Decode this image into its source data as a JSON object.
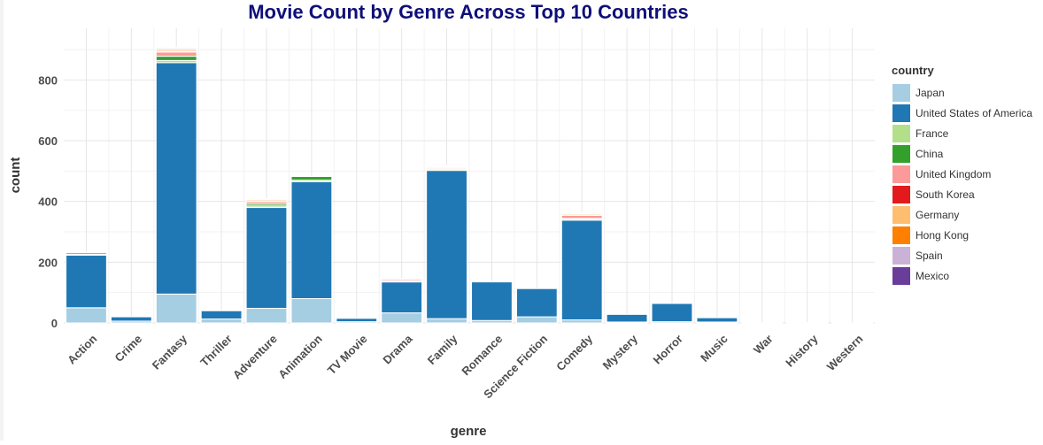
{
  "chart_data": {
    "type": "bar",
    "stacked": true,
    "title": "Movie Count by Genre Across Top 10 Countries",
    "xlabel": "genre",
    "ylabel": "count",
    "ylim": [
      0,
      970
    ],
    "yticks": [
      0,
      200,
      400,
      600,
      800
    ],
    "grid": true,
    "legend": {
      "title": "country",
      "placement": "right"
    },
    "categories": [
      "Action",
      "Crime",
      "Fantasy",
      "Thriller",
      "Adventure",
      "Animation",
      "TV Movie",
      "Drama",
      "Family",
      "Romance",
      "Science Fiction",
      "Comedy",
      "Mystery",
      "Horror",
      "Music",
      "War",
      "History",
      "Western"
    ],
    "series": [
      {
        "name": "Japan",
        "color": "#a6cee3",
        "values": [
          50,
          6,
          95,
          13,
          48,
          80,
          4,
          33,
          14,
          8,
          20,
          10,
          3,
          4,
          3,
          1,
          1,
          1
        ]
      },
      {
        "name": "United States of America",
        "color": "#1f78b4",
        "values": [
          173,
          14,
          762,
          27,
          332,
          385,
          11,
          102,
          488,
          127,
          93,
          328,
          25,
          60,
          14,
          0,
          0,
          0
        ]
      },
      {
        "name": "France",
        "color": "#b2df8a",
        "values": [
          3,
          0,
          7,
          0,
          5,
          5,
          0,
          2,
          4,
          0,
          0,
          4,
          0,
          0,
          0,
          0,
          0,
          0
        ]
      },
      {
        "name": "China",
        "color": "#33a02c",
        "values": [
          5,
          0,
          14,
          0,
          6,
          12,
          0,
          1,
          2,
          0,
          0,
          2,
          0,
          0,
          0,
          0,
          0,
          0
        ]
      },
      {
        "name": "United Kingdom",
        "color": "#fb9a99",
        "values": [
          2,
          0,
          14,
          0,
          8,
          0,
          0,
          5,
          4,
          0,
          0,
          10,
          0,
          0,
          0,
          0,
          0,
          0
        ]
      },
      {
        "name": "South Korea",
        "color": "#e31a1c",
        "values": [
          0,
          0,
          3,
          0,
          1,
          0,
          0,
          1,
          1,
          0,
          0,
          2,
          0,
          0,
          0,
          0,
          0,
          0
        ]
      },
      {
        "name": "Germany",
        "color": "#fdbf6f",
        "values": [
          0,
          0,
          6,
          0,
          5,
          0,
          0,
          1,
          3,
          0,
          0,
          4,
          0,
          0,
          0,
          0,
          0,
          0
        ]
      },
      {
        "name": "Hong Kong",
        "color": "#ff7f00",
        "values": [
          0,
          0,
          2,
          0,
          1,
          0,
          0,
          0,
          0,
          0,
          0,
          1,
          0,
          0,
          0,
          0,
          0,
          0
        ]
      },
      {
        "name": "Spain",
        "color": "#cab2d6",
        "values": [
          0,
          0,
          4,
          0,
          3,
          0,
          0,
          1,
          2,
          0,
          0,
          3,
          0,
          0,
          0,
          0,
          0,
          0
        ]
      },
      {
        "name": "Mexico",
        "color": "#6a3d9a",
        "values": [
          0,
          0,
          1,
          0,
          0,
          0,
          0,
          0,
          0,
          0,
          0,
          0,
          0,
          0,
          0,
          0,
          0,
          0
        ]
      }
    ]
  }
}
